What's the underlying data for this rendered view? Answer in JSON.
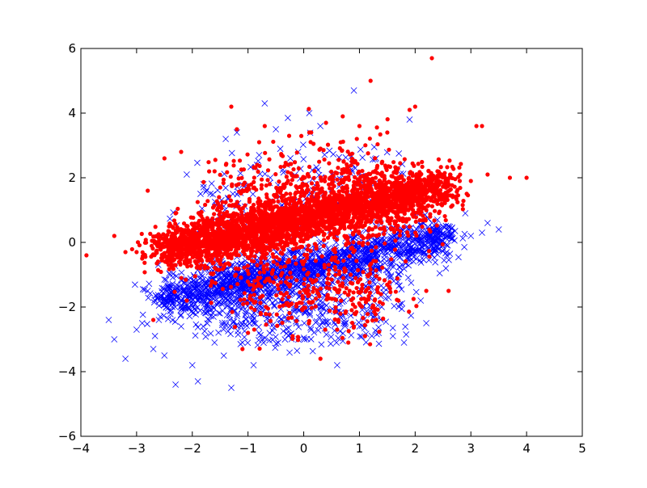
{
  "chart_data": {
    "type": "scatter",
    "title": "",
    "xlabel": "",
    "ylabel": "",
    "xlim": [
      -4,
      5
    ],
    "ylim": [
      -6,
      6
    ],
    "x_ticks": [
      -4,
      -3,
      -2,
      -1,
      0,
      1,
      2,
      3,
      4,
      5
    ],
    "y_ticks": [
      -6,
      -4,
      -2,
      0,
      2,
      4,
      6
    ],
    "x_tick_labels": [
      "−4",
      "−3",
      "−2",
      "−1",
      "0",
      "1",
      "2",
      "3",
      "4",
      "5"
    ],
    "y_tick_labels": [
      "−6",
      "−4",
      "−2",
      "0",
      "2",
      "4",
      "6"
    ],
    "grid": false,
    "legend": "none",
    "series": [
      {
        "marker": "x",
        "color": "#0000ff",
        "points": [
          [
            -3.5,
            -2.4
          ],
          [
            -3.4,
            -3.0
          ],
          [
            -3.2,
            -3.6
          ],
          [
            -3.0,
            -2.7
          ],
          [
            -2.9,
            -2.5
          ],
          [
            -2.8,
            -1.5
          ],
          [
            -2.7,
            -3.3
          ],
          [
            -2.6,
            -2.4
          ],
          [
            -2.5,
            -3.5
          ],
          [
            -2.4,
            -1.0
          ],
          [
            -2.3,
            -4.4
          ],
          [
            -2.2,
            -2.6
          ],
          [
            -2.1,
            2.1
          ],
          [
            -2.0,
            -3.8
          ],
          [
            -1.9,
            -4.3
          ],
          [
            -1.8,
            1.8
          ],
          [
            -1.7,
            -2.4
          ],
          [
            -1.6,
            -3.1
          ],
          [
            -1.5,
            -1.4
          ],
          [
            -1.4,
            3.2
          ],
          [
            -1.3,
            -4.5
          ],
          [
            -1.2,
            3.4
          ],
          [
            -1.1,
            -3.1
          ],
          [
            -1.0,
            1.7
          ],
          [
            -0.9,
            -3.8
          ],
          [
            -0.8,
            2.7
          ],
          [
            -0.7,
            4.3
          ],
          [
            -0.6,
            2.0
          ],
          [
            -0.5,
            3.5
          ],
          [
            -0.3,
            2.4
          ],
          [
            -0.2,
            -2.9
          ],
          [
            -0.1,
            2.8
          ],
          [
            0.1,
            4.0
          ],
          [
            0.3,
            -2.0
          ],
          [
            0.5,
            2.1
          ],
          [
            0.6,
            -3.8
          ],
          [
            0.9,
            4.7
          ],
          [
            1.0,
            -2.6
          ],
          [
            1.2,
            -1.4
          ],
          [
            1.3,
            2.6
          ],
          [
            1.4,
            -2.0
          ],
          [
            1.6,
            -2.9
          ],
          [
            1.8,
            -3.1
          ],
          [
            1.9,
            3.8
          ],
          [
            2.1,
            -1.8
          ],
          [
            2.2,
            -2.5
          ],
          [
            2.4,
            0.7
          ],
          [
            2.6,
            0.5
          ],
          [
            2.9,
            0.9
          ],
          [
            3.2,
            0.3
          ],
          [
            3.5,
            0.4
          ],
          [
            3.3,
            0.6
          ],
          [
            3.0,
            0.2
          ]
        ],
        "clusters": [
          {
            "from": [
              -2.6,
              -1.8
            ],
            "to": [
              2.6,
              0.2
            ],
            "count": 1400,
            "spread": 0.3
          },
          {
            "from": [
              -2.0,
              -1.6
            ],
            "to": [
              1.5,
              -0.6
            ],
            "count": 500,
            "spread": 0.55
          },
          {
            "from": [
              -1.6,
              -2.5
            ],
            "to": [
              1.6,
              -2.2
            ],
            "count": 260,
            "spread": 0.45
          },
          {
            "from": [
              -1.8,
              0.8
            ],
            "to": [
              1.4,
              2.2
            ],
            "count": 200,
            "spread": 0.7
          }
        ]
      },
      {
        "marker": "o",
        "color": "#ff0000",
        "points": [
          [
            -3.9,
            -0.4
          ],
          [
            -3.4,
            0.2
          ],
          [
            -3.2,
            -0.3
          ],
          [
            -3.0,
            -0.3
          ],
          [
            -2.9,
            -0.5
          ],
          [
            -2.8,
            1.6
          ],
          [
            -2.7,
            -2.4
          ],
          [
            -2.5,
            2.6
          ],
          [
            -2.3,
            0.9
          ],
          [
            -2.2,
            2.8
          ],
          [
            -2.1,
            -1.8
          ],
          [
            -1.6,
            2.2
          ],
          [
            -1.3,
            4.2
          ],
          [
            -1.2,
            3.5
          ],
          [
            -1.1,
            -3.3
          ],
          [
            -1.0,
            -2.8
          ],
          [
            -0.8,
            3.1
          ],
          [
            -0.7,
            3.6
          ],
          [
            -0.4,
            2.7
          ],
          [
            -0.2,
            -2.9
          ],
          [
            0.1,
            3.4
          ],
          [
            0.2,
            -1.2
          ],
          [
            0.3,
            -3.6
          ],
          [
            0.4,
            3.7
          ],
          [
            0.6,
            -2.7
          ],
          [
            0.7,
            3.9
          ],
          [
            0.8,
            -3.1
          ],
          [
            0.9,
            -2.6
          ],
          [
            1.0,
            3.6
          ],
          [
            1.1,
            -2.9
          ],
          [
            1.2,
            5.0
          ],
          [
            1.3,
            -2.4
          ],
          [
            1.5,
            3.4
          ],
          [
            1.7,
            -1.8
          ],
          [
            1.9,
            4.1
          ],
          [
            2.0,
            4.2
          ],
          [
            2.2,
            -1.5
          ],
          [
            2.3,
            5.7
          ],
          [
            2.4,
            2.2
          ],
          [
            2.6,
            -1.5
          ],
          [
            2.8,
            1.9
          ],
          [
            3.0,
            1.9
          ],
          [
            3.1,
            3.6
          ],
          [
            3.2,
            3.6
          ],
          [
            3.3,
            2.1
          ],
          [
            3.7,
            2.0
          ],
          [
            4.0,
            2.0
          ]
        ],
        "clusters": [
          {
            "from": [
              -2.6,
              -0.3
            ],
            "to": [
              2.6,
              1.8
            ],
            "count": 2600,
            "spread": 0.32
          },
          {
            "from": [
              -2.0,
              0.0
            ],
            "to": [
              2.0,
              1.2
            ],
            "count": 900,
            "spread": 0.65
          },
          {
            "from": [
              -1.0,
              -1.6
            ],
            "to": [
              1.4,
              -1.6
            ],
            "count": 300,
            "spread": 0.55
          },
          {
            "from": [
              -1.4,
              1.6
            ],
            "to": [
              1.6,
              2.4
            ],
            "count": 260,
            "spread": 0.55
          }
        ]
      }
    ]
  }
}
